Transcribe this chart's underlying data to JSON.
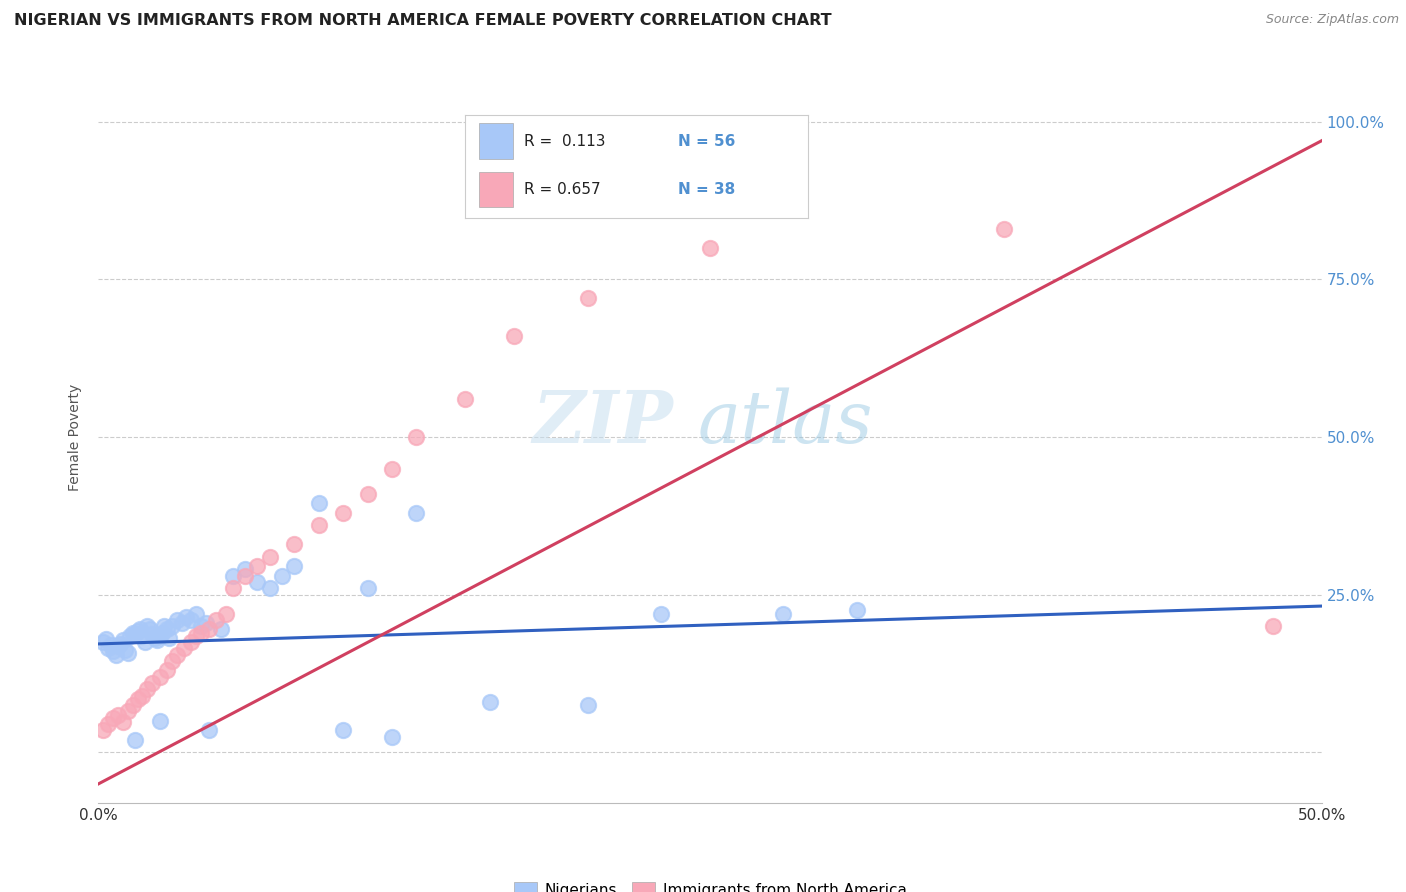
{
  "title": "NIGERIAN VS IMMIGRANTS FROM NORTH AMERICA FEMALE POVERTY CORRELATION CHART",
  "source": "Source: ZipAtlas.com",
  "ylabel": "Female Poverty",
  "y_ticks": [
    0.0,
    0.25,
    0.5,
    0.75,
    1.0
  ],
  "y_tick_labels": [
    "",
    "25.0%",
    "50.0%",
    "75.0%",
    "100.0%"
  ],
  "x_min": 0.0,
  "x_max": 0.5,
  "y_min": -0.08,
  "y_max": 1.08,
  "blue_color": "#a8c8f8",
  "pink_color": "#f8a8b8",
  "blue_line_color": "#3060c0",
  "pink_line_color": "#d04060",
  "right_axis_color": "#5090d0",
  "watermark_zip": "ZIP",
  "watermark_atlas": "atlas",
  "nigerians_x": [
    0.002,
    0.003,
    0.004,
    0.005,
    0.006,
    0.007,
    0.008,
    0.009,
    0.01,
    0.011,
    0.012,
    0.013,
    0.014,
    0.015,
    0.016,
    0.017,
    0.018,
    0.019,
    0.02,
    0.021,
    0.022,
    0.023,
    0.024,
    0.025,
    0.026,
    0.027,
    0.028,
    0.029,
    0.03,
    0.032,
    0.034,
    0.036,
    0.038,
    0.04,
    0.042,
    0.044,
    0.05,
    0.055,
    0.06,
    0.065,
    0.07,
    0.075,
    0.08,
    0.09,
    0.1,
    0.11,
    0.13,
    0.16,
    0.2,
    0.23,
    0.28,
    0.31,
    0.015,
    0.025,
    0.045,
    0.12
  ],
  "nigerians_y": [
    0.175,
    0.18,
    0.165,
    0.17,
    0.16,
    0.155,
    0.168,
    0.172,
    0.178,
    0.162,
    0.158,
    0.185,
    0.19,
    0.188,
    0.192,
    0.195,
    0.185,
    0.175,
    0.2,
    0.195,
    0.188,
    0.182,
    0.178,
    0.185,
    0.19,
    0.2,
    0.195,
    0.182,
    0.2,
    0.21,
    0.205,
    0.215,
    0.21,
    0.22,
    0.2,
    0.205,
    0.195,
    0.28,
    0.29,
    0.27,
    0.26,
    0.28,
    0.295,
    0.395,
    0.035,
    0.26,
    0.38,
    0.08,
    0.075,
    0.22,
    0.22,
    0.225,
    0.02,
    0.05,
    0.035,
    0.025
  ],
  "immigrants_x": [
    0.002,
    0.004,
    0.006,
    0.008,
    0.01,
    0.012,
    0.014,
    0.016,
    0.018,
    0.02,
    0.022,
    0.025,
    0.028,
    0.03,
    0.032,
    0.035,
    0.038,
    0.04,
    0.042,
    0.045,
    0.048,
    0.052,
    0.055,
    0.06,
    0.065,
    0.07,
    0.08,
    0.09,
    0.1,
    0.11,
    0.12,
    0.13,
    0.15,
    0.17,
    0.2,
    0.25,
    0.37,
    0.48
  ],
  "immigrants_y": [
    0.035,
    0.045,
    0.055,
    0.06,
    0.048,
    0.065,
    0.075,
    0.085,
    0.09,
    0.1,
    0.11,
    0.12,
    0.13,
    0.145,
    0.155,
    0.165,
    0.175,
    0.185,
    0.19,
    0.195,
    0.21,
    0.22,
    0.26,
    0.28,
    0.295,
    0.31,
    0.33,
    0.36,
    0.38,
    0.41,
    0.45,
    0.5,
    0.56,
    0.66,
    0.72,
    0.8,
    0.83,
    0.2
  ],
  "blue_trendline_x": [
    0.0,
    0.5
  ],
  "blue_trendline_y": [
    0.172,
    0.232
  ],
  "pink_trendline_x": [
    0.0,
    0.5
  ],
  "pink_trendline_y": [
    -0.05,
    0.97
  ],
  "background_color": "#ffffff",
  "grid_color": "#cccccc"
}
